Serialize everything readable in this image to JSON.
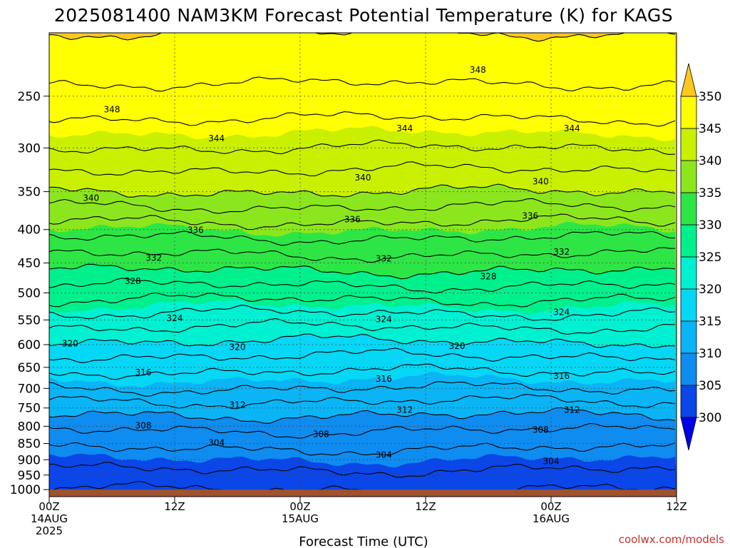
{
  "chart_data": {
    "type": "heatmap",
    "title": "2025081400 NAM3KM Forecast Potential Temperature (K) for KAGS",
    "xlabel": "Forecast Time (UTC)",
    "ylabel": "",
    "x_ticks": [
      {
        "hours": 0,
        "lines": [
          "00Z",
          "14AUG",
          "2025"
        ]
      },
      {
        "hours": 12,
        "lines": [
          "12Z"
        ]
      },
      {
        "hours": 24,
        "lines": [
          "00Z",
          "15AUG"
        ]
      },
      {
        "hours": 36,
        "lines": [
          "12Z"
        ]
      },
      {
        "hours": 48,
        "lines": [
          "00Z",
          "16AUG"
        ]
      },
      {
        "hours": 60,
        "lines": [
          "12Z"
        ]
      }
    ],
    "xlim": [
      0,
      60
    ],
    "y_axis": "pressure (log scale, inverted)",
    "ylim": [
      1025,
      200
    ],
    "y_ticks": [
      250,
      300,
      350,
      400,
      450,
      500,
      550,
      600,
      650,
      700,
      750,
      800,
      850,
      900,
      950,
      1000
    ],
    "grid": true,
    "colorbar": {
      "levels": [
        300,
        305,
        310,
        315,
        320,
        325,
        330,
        335,
        340,
        345,
        350
      ],
      "colors": [
        "#0000e6",
        "#0a46e8",
        "#0e8cf0",
        "#0ab4f5",
        "#05d7f5",
        "#00f0d2",
        "#00f08c",
        "#2de646",
        "#8ce61e",
        "#c8f000",
        "#ffff00",
        "#ffc81e"
      ],
      "extend": "both",
      "placement": "right"
    },
    "contour_interval": 2,
    "theta_profile": [
      {
        "p": 1000,
        "theta": 302
      },
      {
        "p": 950,
        "theta": 303.5
      },
      {
        "p": 900,
        "theta": 305
      },
      {
        "p": 850,
        "theta": 306.5
      },
      {
        "p": 800,
        "theta": 308.5
      },
      {
        "p": 750,
        "theta": 311
      },
      {
        "p": 700,
        "theta": 314
      },
      {
        "p": 650,
        "theta": 316.5
      },
      {
        "p": 600,
        "theta": 319.5
      },
      {
        "p": 550,
        "theta": 323
      },
      {
        "p": 500,
        "theta": 327
      },
      {
        "p": 450,
        "theta": 331
      },
      {
        "p": 400,
        "theta": 335
      },
      {
        "p": 350,
        "theta": 340
      },
      {
        "p": 300,
        "theta": 344
      },
      {
        "p": 250,
        "theta": 347.5
      },
      {
        "p": 200,
        "theta": 350
      }
    ],
    "contour_labels": [
      {
        "value": "348",
        "hours": 6,
        "p": 262
      },
      {
        "value": "348",
        "hours": 41,
        "p": 228
      },
      {
        "value": "344",
        "hours": 16,
        "p": 290
      },
      {
        "value": "344",
        "hours": 34,
        "p": 280
      },
      {
        "value": "344",
        "hours": 50,
        "p": 280
      },
      {
        "value": "340",
        "hours": 4,
        "p": 358
      },
      {
        "value": "340",
        "hours": 30,
        "p": 333
      },
      {
        "value": "340",
        "hours": 47,
        "p": 338
      },
      {
        "value": "336",
        "hours": 14,
        "p": 401
      },
      {
        "value": "336",
        "hours": 29,
        "p": 386
      },
      {
        "value": "336",
        "hours": 46,
        "p": 381
      },
      {
        "value": "332",
        "hours": 10,
        "p": 442
      },
      {
        "value": "332",
        "hours": 32,
        "p": 443
      },
      {
        "value": "332",
        "hours": 49,
        "p": 433
      },
      {
        "value": "328",
        "hours": 8,
        "p": 480
      },
      {
        "value": "328",
        "hours": 42,
        "p": 472
      },
      {
        "value": "324",
        "hours": 12,
        "p": 547
      },
      {
        "value": "324",
        "hours": 32,
        "p": 549
      },
      {
        "value": "324",
        "hours": 49,
        "p": 535
      },
      {
        "value": "320",
        "hours": 2,
        "p": 598
      },
      {
        "value": "320",
        "hours": 18,
        "p": 605
      },
      {
        "value": "320",
        "hours": 39,
        "p": 603
      },
      {
        "value": "316",
        "hours": 9,
        "p": 662
      },
      {
        "value": "316",
        "hours": 32,
        "p": 677
      },
      {
        "value": "316",
        "hours": 49,
        "p": 670
      },
      {
        "value": "312",
        "hours": 18,
        "p": 742
      },
      {
        "value": "312",
        "hours": 34,
        "p": 755
      },
      {
        "value": "312",
        "hours": 50,
        "p": 755
      },
      {
        "value": "308",
        "hours": 9,
        "p": 798
      },
      {
        "value": "308",
        "hours": 26,
        "p": 823
      },
      {
        "value": "308",
        "hours": 47,
        "p": 810
      },
      {
        "value": "304",
        "hours": 16,
        "p": 848
      },
      {
        "value": "304",
        "hours": 32,
        "p": 885
      },
      {
        "value": "304",
        "hours": 48,
        "p": 905
      }
    ],
    "ground": {
      "from_p": 1000,
      "color": "#a0522d"
    },
    "credit": "coolwx.com/models"
  }
}
